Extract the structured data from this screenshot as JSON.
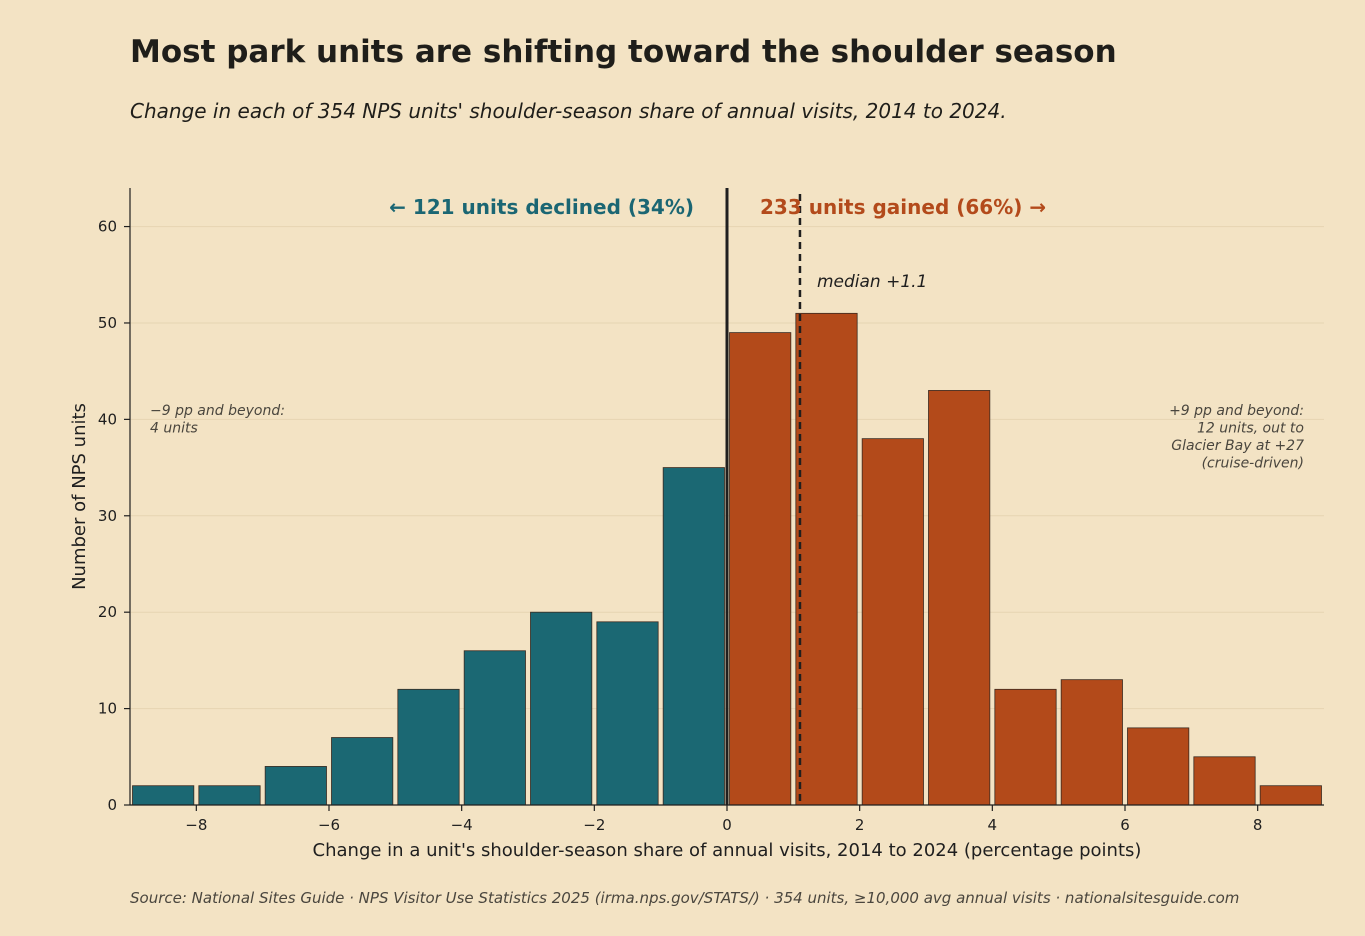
{
  "title": "Most park units are shifting toward the shoulder season",
  "subtitle": "Change in each of 354 NPS units' shoulder-season share of annual visits, 2014 to 2024.",
  "source": "Source: National Sites Guide  ·  NPS Visitor Use Statistics 2025 (irma.nps.gov/STATS/)  ·  354 units, ≥10,000 avg annual visits  ·  nationalsitesguide.com",
  "chart_data": {
    "type": "bar",
    "subtype": "histogram",
    "xlabel": "Change in a unit's shoulder-season share of annual visits, 2014 to 2024 (percentage points)",
    "ylabel": "Number of NPS units",
    "xlim": [
      -9,
      9
    ],
    "ylim": [
      0,
      64
    ],
    "x_ticks": [
      -8,
      -6,
      -4,
      -2,
      0,
      2,
      4,
      6,
      8
    ],
    "x_tick_labels": [
      "−8",
      "−6",
      "−4",
      "−2",
      "0",
      "2",
      "4",
      "6",
      "8"
    ],
    "y_ticks": [
      0,
      10,
      20,
      30,
      40,
      50,
      60
    ],
    "grid": "horizontal",
    "bin_width": 1,
    "bins": [
      {
        "start": -9,
        "end": -8,
        "count": 2,
        "group": "declined"
      },
      {
        "start": -8,
        "end": -7,
        "count": 2,
        "group": "declined"
      },
      {
        "start": -7,
        "end": -6,
        "count": 4,
        "group": "declined"
      },
      {
        "start": -6,
        "end": -5,
        "count": 7,
        "group": "declined"
      },
      {
        "start": -5,
        "end": -4,
        "count": 12,
        "group": "declined"
      },
      {
        "start": -4,
        "end": -3,
        "count": 16,
        "group": "declined"
      },
      {
        "start": -3,
        "end": -2,
        "count": 20,
        "group": "declined"
      },
      {
        "start": -2,
        "end": -1,
        "count": 19,
        "group": "declined"
      },
      {
        "start": -1,
        "end": 0,
        "count": 35,
        "group": "declined"
      },
      {
        "start": 0,
        "end": 1,
        "count": 49,
        "group": "gained"
      },
      {
        "start": 1,
        "end": 2,
        "count": 51,
        "group": "gained"
      },
      {
        "start": 2,
        "end": 3,
        "count": 38,
        "group": "gained"
      },
      {
        "start": 3,
        "end": 4,
        "count": 43,
        "group": "gained"
      },
      {
        "start": 4,
        "end": 5,
        "count": 12,
        "group": "gained"
      },
      {
        "start": 5,
        "end": 6,
        "count": 13,
        "group": "gained"
      },
      {
        "start": 6,
        "end": 7,
        "count": 8,
        "group": "gained"
      },
      {
        "start": 7,
        "end": 8,
        "count": 5,
        "group": "gained"
      },
      {
        "start": 8,
        "end": 9,
        "count": 2,
        "group": "gained"
      }
    ],
    "colors": {
      "declined": "#1b6873",
      "gained": "#b34a1a",
      "bar_edge": "#3a2a20",
      "zero_line": "#1f1f1f",
      "background": "#f3e3c4",
      "grid": "#e6d4b2"
    },
    "zero_line_x": 0,
    "median": 1.1,
    "annotations": {
      "declined": "←  121 units declined (34%)",
      "gained": "233 units gained (66%)  →",
      "median": "median +1.1",
      "left_note": [
        "−9 pp and beyond:",
        "4 units"
      ],
      "right_note": [
        "+9 pp and beyond:",
        "12 units, out to",
        "Glacier Bay at +27",
        "(cruise-driven)"
      ]
    }
  }
}
